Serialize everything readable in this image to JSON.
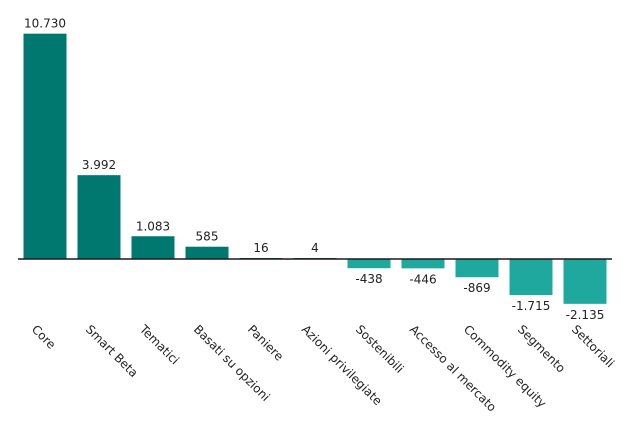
{
  "chart_data": {
    "type": "bar",
    "title": "",
    "xlabel": "",
    "ylabel": "",
    "categories": [
      "Core",
      "Smart Beta",
      "Tematici",
      "Basati su opzioni",
      "Paniere",
      "Azioni privilegiate",
      "Sostenibili",
      "Accesso al mercato",
      "Commodity equity",
      "Segmento",
      "Settoriali"
    ],
    "values": [
      10730,
      3992,
      1083,
      585,
      16,
      4,
      -438,
      -446,
      -869,
      -1715,
      -2135
    ],
    "value_labels": [
      "10.730",
      "3.992",
      "1.083",
      "585",
      "16",
      "4",
      "-438",
      "-446",
      "-869",
      "-1.715",
      "-2.135"
    ],
    "ylim": [
      -2500,
      11000
    ],
    "grid": false,
    "legend": "none",
    "colors": {
      "positive": "#00786F",
      "negative": "#1FA99E",
      "baseline": "#1a1a1a"
    }
  }
}
